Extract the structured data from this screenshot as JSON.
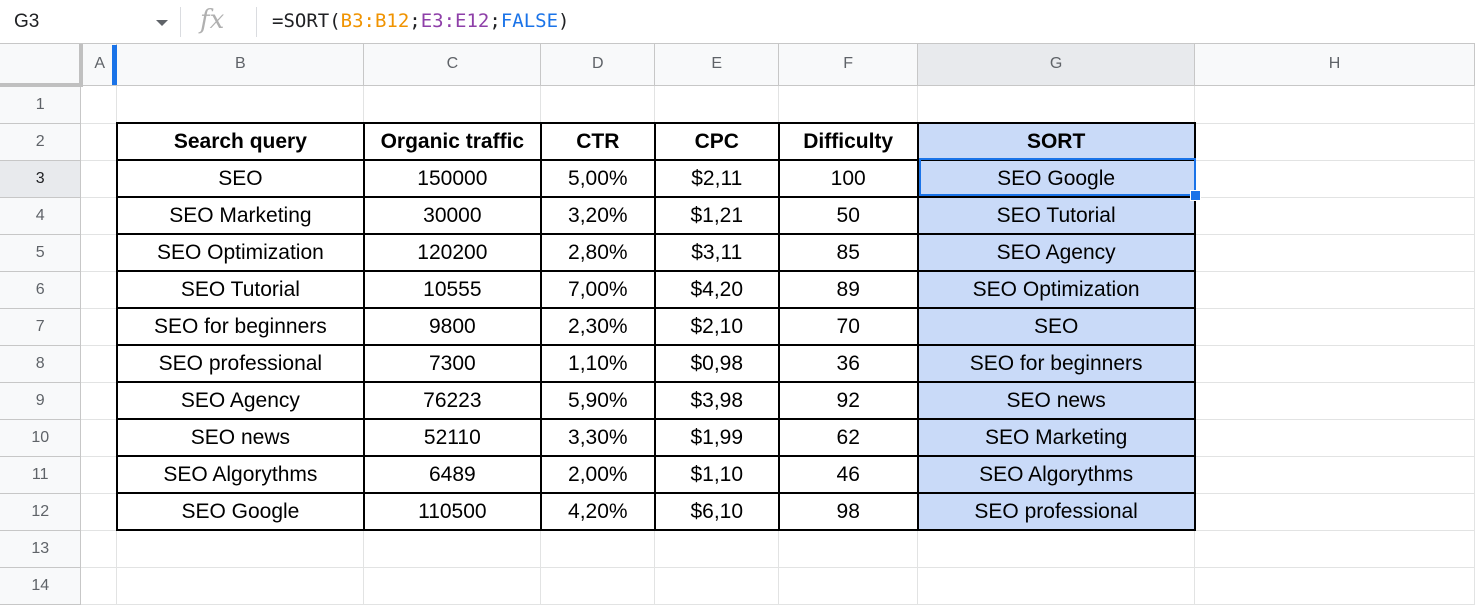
{
  "namebox": {
    "ref": "G3"
  },
  "formula": {
    "tokens": [
      {
        "text": "=SORT(",
        "cls": "tk-op"
      },
      {
        "text": "B3:B12",
        "cls": "tk-r1"
      },
      {
        "text": ";",
        "cls": "tk-op"
      },
      {
        "text": "E3:E12",
        "cls": "tk-r2"
      },
      {
        "text": ";",
        "cls": "tk-op"
      },
      {
        "text": "FALSE",
        "cls": "tk-bool"
      },
      {
        "text": ")",
        "cls": "tk-op"
      }
    ]
  },
  "columns": [
    "A",
    "B",
    "C",
    "D",
    "E",
    "F",
    "G",
    "H"
  ],
  "rows": [
    "1",
    "2",
    "3",
    "4",
    "5",
    "6",
    "7",
    "8",
    "9",
    "10",
    "11",
    "12",
    "13",
    "14"
  ],
  "table": {
    "headers": [
      "Search query",
      "Organic traffic",
      "CTR",
      "CPC",
      "Difficulty",
      "SORT"
    ],
    "data": [
      [
        "SEO",
        "150000",
        "5,00%",
        "$2,11",
        "100",
        "SEO Google"
      ],
      [
        "SEO Marketing",
        "30000",
        "3,20%",
        "$1,21",
        "50",
        "SEO Tutorial"
      ],
      [
        "SEO Optimization",
        "120200",
        "2,80%",
        "$3,11",
        "85",
        "SEO Agency"
      ],
      [
        "SEO Tutorial",
        "10555",
        "7,00%",
        "$4,20",
        "89",
        "SEO Optimization"
      ],
      [
        "SEO for beginners",
        "9800",
        "2,30%",
        "$2,10",
        "70",
        "SEO"
      ],
      [
        "SEO professional",
        "7300",
        "1,10%",
        "$0,98",
        "36",
        "SEO for beginners"
      ],
      [
        "SEO Agency",
        "76223",
        "5,90%",
        "$3,98",
        "92",
        "SEO news"
      ],
      [
        "SEO news",
        "52110",
        "3,30%",
        "$1,99",
        "62",
        "SEO Marketing"
      ],
      [
        "SEO Algorythms",
        "6489",
        "2,00%",
        "$1,10",
        "46",
        "SEO Algorythms"
      ],
      [
        "SEO Google",
        "110500",
        "4,20%",
        "$6,10",
        "98",
        "SEO professional"
      ]
    ]
  },
  "colors": {
    "sort_column_fill": "#c9daf8",
    "selection_accent": "#1a73e8",
    "range1_color": "#f09300",
    "range2_color": "#8e3fa8",
    "boolean_color": "#1a73e8"
  }
}
